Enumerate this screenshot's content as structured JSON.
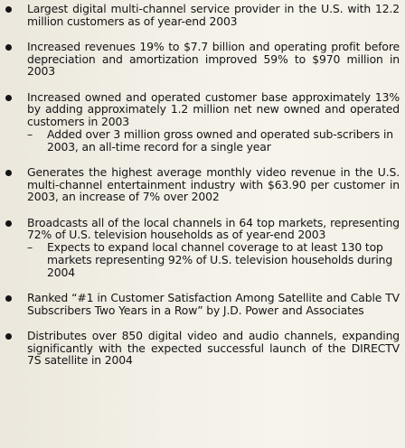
{
  "bullets": [
    {
      "text": "Largest digital multi-channel service provider in the U.S. with 12.2 million customers as of year-end 2003",
      "subitems": []
    },
    {
      "text": "Increased revenues 19% to $7.7 billion and operating profit before depreciation and amortization improved 59% to $970 million in 2003",
      "subitems": []
    },
    {
      "text": "Increased owned and operated customer base approximately 13% by adding approximately 1.2 million net new owned and operated customers in 2003",
      "subitems": [
        "Added over 3 million gross owned and operated sub-scribers in 2003, an all-time record for a single year"
      ]
    },
    {
      "text": "Generates the highest average monthly video revenue in the U.S. multi-channel entertainment industry with $63.90 per customer in 2003, an increase of 7% over 2002",
      "subitems": []
    },
    {
      "text": "Broadcasts all of the local channels in 64 top markets, representing 72% of U.S. television households as of year-end 2003",
      "subitems": [
        "Expects to expand local channel coverage to at least 130 top markets representing 92% of U.S. television households during 2004"
      ]
    },
    {
      "text": "Ranked “#1 in Customer Satisfaction Among Satellite and Cable TV Subscribers Two Years in a Row” by J.D. Power and Associates",
      "subitems": []
    },
    {
      "text": "Distributes over 850 digital video and audio channels, expanding significantly with the expected successful launch of the DIRECTV 7S satellite in 2004",
      "subitems": []
    }
  ],
  "dash_symbol": "–"
}
